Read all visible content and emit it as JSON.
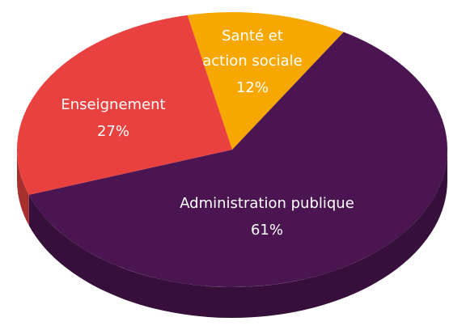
{
  "chart_data": {
    "type": "pie",
    "categories": [
      "Santé et action sociale",
      "Administration publique",
      "Enseignement"
    ],
    "values": [
      12,
      61,
      27
    ],
    "value_labels": [
      "12%",
      "61%",
      "27%"
    ],
    "colors": [
      "#f7a800",
      "#4b1552",
      "#e8413f"
    ]
  }
}
